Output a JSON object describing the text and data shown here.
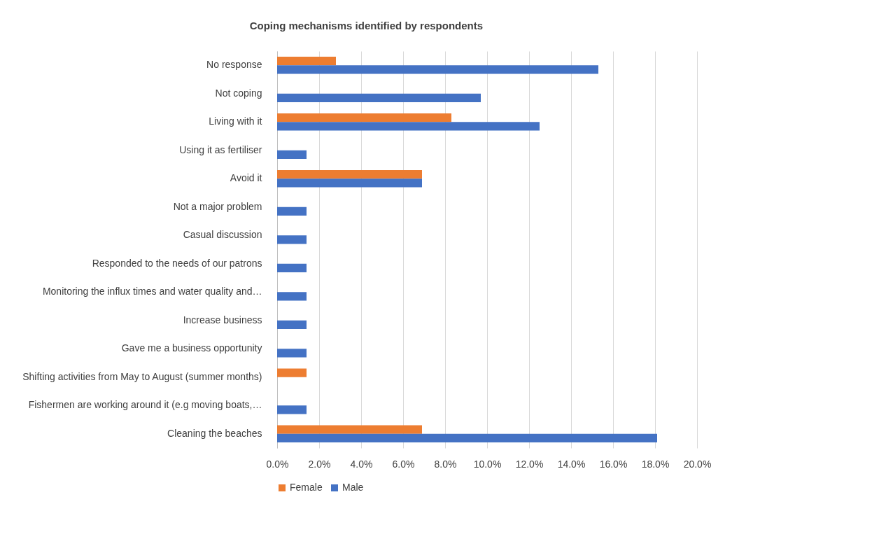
{
  "chart_data": {
    "type": "bar",
    "orientation": "horizontal",
    "title": "Coping mechanisms identified by respondents",
    "categories": [
      "No response",
      "Not coping",
      "Living with it",
      "Using it as fertiliser",
      "Avoid it",
      "Not a major problem",
      "Casual discussion",
      "Responded to the needs of our patrons",
      "Monitoring the influx times and water quality and…",
      "Increase business",
      "Gave me a business opportunity",
      "Shifting activities from May to August (summer months)",
      "Fishermen are working around it (e.g moving boats,…",
      "Cleaning the beaches"
    ],
    "series": [
      {
        "name": "Female",
        "color": "#ed7d31",
        "values": [
          2.8,
          null,
          8.3,
          null,
          6.9,
          null,
          null,
          null,
          null,
          null,
          null,
          1.4,
          null,
          6.9
        ]
      },
      {
        "name": "Male",
        "color": "#4472c4",
        "values": [
          15.3,
          9.7,
          12.5,
          1.4,
          6.9,
          1.4,
          1.4,
          1.4,
          1.4,
          1.4,
          1.4,
          null,
          1.4,
          18.1
        ]
      }
    ],
    "xlim": [
      0,
      20
    ],
    "xticks": [
      {
        "value": 0,
        "label": "0.0%"
      },
      {
        "value": 2,
        "label": "2.0%"
      },
      {
        "value": 4,
        "label": "4.0%"
      },
      {
        "value": 6,
        "label": "6.0%"
      },
      {
        "value": 8,
        "label": "8.0%"
      },
      {
        "value": 10,
        "label": "10.0%"
      },
      {
        "value": 12,
        "label": "12.0%"
      },
      {
        "value": 14,
        "label": "14.0%"
      },
      {
        "value": 16,
        "label": "16.0%"
      },
      {
        "value": 18,
        "label": "18.0%"
      },
      {
        "value": 20,
        "label": "20.0%"
      }
    ],
    "grid": "x",
    "legend": "bottom"
  }
}
